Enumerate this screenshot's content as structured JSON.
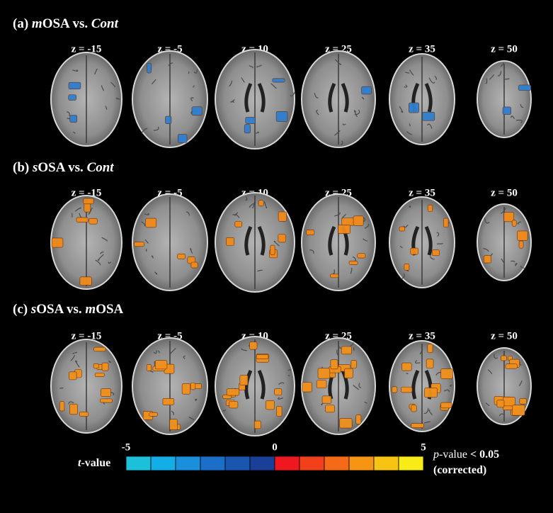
{
  "panels": [
    {
      "title": [
        {
          "text": "(a) ",
          "italic": false
        },
        {
          "text": "m",
          "italic": true
        },
        {
          "text": "OSA vs. ",
          "italic": false
        },
        {
          "text": "Cont",
          "italic": true
        }
      ],
      "slices": [
        "z = -15",
        "z = -5",
        "z = 10",
        "z = 25",
        "z = 35",
        "z = 50"
      ],
      "blob_color": "#2f7fd0"
    },
    {
      "title": [
        {
          "text": "(b) ",
          "italic": false
        },
        {
          "text": "s",
          "italic": true
        },
        {
          "text": "OSA vs. ",
          "italic": false
        },
        {
          "text": "Cont",
          "italic": true
        }
      ],
      "slices": [
        "z = -15",
        "z = -5",
        "z = 10",
        "z = 25",
        "z = 35",
        "z = 50"
      ],
      "blob_color": "#f08a1a"
    },
    {
      "title": [
        {
          "text": "(c) ",
          "italic": false
        },
        {
          "text": "s",
          "italic": true
        },
        {
          "text": "OSA vs. ",
          "italic": false
        },
        {
          "text": "m",
          "italic": true
        },
        {
          "text": "OSA",
          "italic": false
        }
      ],
      "slices": [
        "z = -15",
        "z = -5",
        "z = 10",
        "z = 25",
        "z = 35",
        "z = 50"
      ],
      "blob_color": "#f0901c"
    }
  ],
  "colorbar": {
    "label": [
      {
        "text": "t",
        "italic": true
      },
      {
        "text": "-value",
        "italic": false
      }
    ],
    "range": [
      -5,
      5
    ],
    "ticks": [
      -5,
      0,
      5
    ],
    "colors": [
      "#1cc0d8",
      "#14aee6",
      "#1a8fdc",
      "#1c6fc8",
      "#1a55b0",
      "#1a3f98",
      "#f01820",
      "#f2401a",
      "#f46a16",
      "#f69414",
      "#f8c414",
      "#f8ec18"
    ]
  },
  "significance": [
    [
      {
        "text": "p",
        "italic": true,
        "bold": false
      },
      {
        "text": "-value ",
        "italic": false,
        "bold": false
      },
      {
        "text": "< 0.05",
        "italic": false,
        "bold": true
      }
    ],
    [
      {
        "text": "(corrected)",
        "italic": false,
        "bold": true
      }
    ]
  ]
}
